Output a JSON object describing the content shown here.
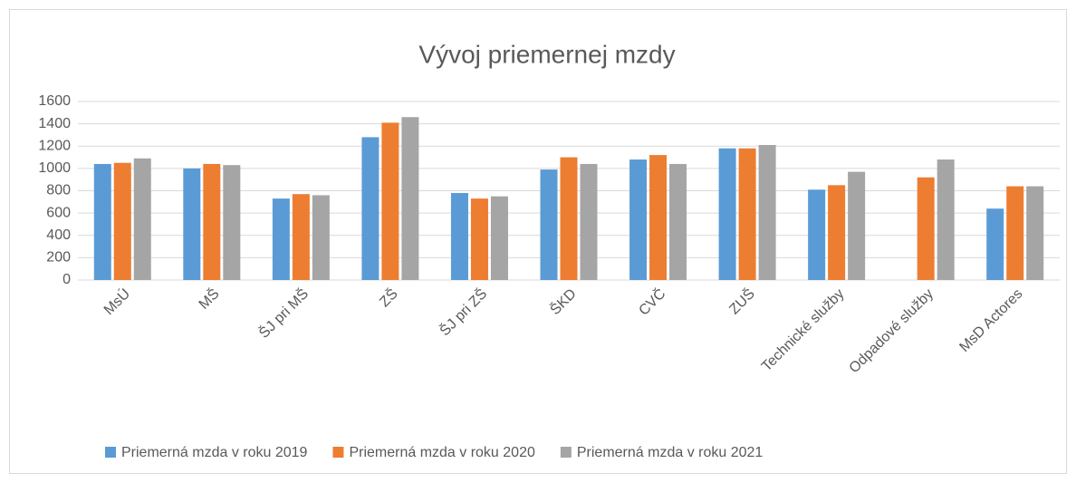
{
  "chart_data": {
    "type": "bar",
    "title": "Vývoj priemernej mzdy",
    "categories": [
      "MsÚ",
      "MŠ",
      "ŠJ pri MŠ",
      "ZŠ",
      "ŠJ pri ZŠ",
      "ŠKD",
      "CVČ",
      "ZUŠ",
      "Technické služby",
      "Odpadové služby",
      "MsD Actores"
    ],
    "series": [
      {
        "name": "Priemerná mzda v roku 2019",
        "color": "#5b9bd5",
        "values": [
          1040,
          1000,
          730,
          1280,
          780,
          990,
          1080,
          1180,
          810,
          null,
          640
        ]
      },
      {
        "name": "Priemerná mzda v roku 2020",
        "color": "#ed7d31",
        "values": [
          1050,
          1040,
          770,
          1410,
          730,
          1100,
          1120,
          1180,
          850,
          920,
          840
        ]
      },
      {
        "name": "Priemerná mzda v roku 2021",
        "color": "#a5a5a5",
        "values": [
          1090,
          1030,
          760,
          1460,
          750,
          1040,
          1040,
          1210,
          970,
          1080,
          840
        ]
      }
    ],
    "ylim": [
      0,
      1600
    ],
    "yticks": [
      0,
      200,
      400,
      600,
      800,
      1000,
      1200,
      1400,
      1600
    ],
    "grid": true,
    "legend": "bottom"
  }
}
